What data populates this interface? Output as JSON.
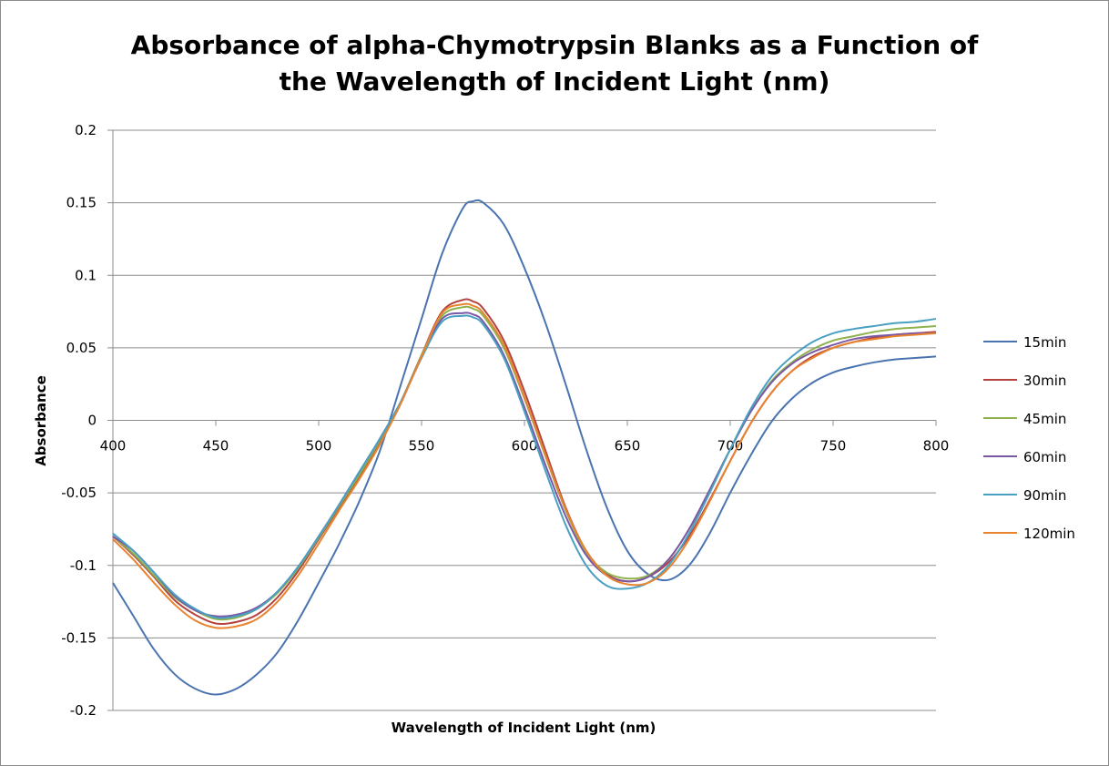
{
  "chart_data": {
    "type": "line",
    "title": "Absorbance of alpha-Chymotrypsin Blanks as a Function of\nthe Wavelength of Incident Light (nm)",
    "xlabel": "Wavelength of Incident Light (nm)",
    "ylabel": "Absorbance",
    "xlim": [
      400,
      800
    ],
    "ylim": [
      -0.2,
      0.2
    ],
    "x_ticks": [
      400,
      450,
      500,
      550,
      600,
      650,
      700,
      750,
      800
    ],
    "x_tick_labels": [
      "400",
      "450",
      "500",
      "550",
      "600",
      "650",
      "700",
      "750",
      "800"
    ],
    "y_ticks": [
      0.2,
      0.15,
      0.1,
      0.05,
      0,
      -0.05,
      -0.1,
      -0.15,
      -0.2
    ],
    "y_tick_labels": [
      "0.2",
      "0.15",
      "0.1",
      "0.05",
      "0",
      "-0.05",
      "-0.1",
      "-0.15",
      "-0.2"
    ],
    "grid": "horizontal",
    "legend_position": "right",
    "x": [
      400,
      410,
      420,
      430,
      440,
      450,
      460,
      470,
      480,
      490,
      500,
      510,
      520,
      530,
      540,
      550,
      560,
      570,
      575,
      580,
      590,
      600,
      610,
      620,
      630,
      640,
      650,
      660,
      670,
      680,
      690,
      700,
      710,
      720,
      730,
      740,
      750,
      760,
      770,
      780,
      790,
      800
    ],
    "series": [
      {
        "name": "15min",
        "color": "#4a74b0",
        "values": [
          -0.112,
          -0.135,
          -0.158,
          -0.175,
          -0.185,
          -0.189,
          -0.185,
          -0.175,
          -0.16,
          -0.138,
          -0.112,
          -0.085,
          -0.055,
          -0.02,
          0.025,
          0.07,
          0.115,
          0.146,
          0.151,
          0.15,
          0.135,
          0.105,
          0.068,
          0.025,
          -0.02,
          -0.06,
          -0.09,
          -0.106,
          -0.11,
          -0.1,
          -0.078,
          -0.05,
          -0.024,
          -0.001,
          0.015,
          0.026,
          0.033,
          0.037,
          0.04,
          0.042,
          0.043,
          0.044
        ]
      },
      {
        "name": "30min",
        "color": "#b3433f",
        "values": [
          -0.08,
          -0.093,
          -0.108,
          -0.124,
          -0.134,
          -0.14,
          -0.139,
          -0.134,
          -0.122,
          -0.104,
          -0.082,
          -0.06,
          -0.038,
          -0.015,
          0.012,
          0.045,
          0.075,
          0.083,
          0.082,
          0.077,
          0.055,
          0.02,
          -0.02,
          -0.06,
          -0.09,
          -0.106,
          -0.111,
          -0.108,
          -0.098,
          -0.08,
          -0.055,
          -0.028,
          -0.002,
          0.019,
          0.034,
          0.044,
          0.05,
          0.054,
          0.057,
          0.059,
          0.06,
          0.061
        ]
      },
      {
        "name": "45min",
        "color": "#8fb24e",
        "values": [
          -0.08,
          -0.092,
          -0.107,
          -0.122,
          -0.131,
          -0.137,
          -0.136,
          -0.13,
          -0.119,
          -0.102,
          -0.081,
          -0.059,
          -0.037,
          -0.013,
          0.013,
          0.045,
          0.072,
          0.078,
          0.077,
          0.072,
          0.05,
          0.015,
          -0.024,
          -0.062,
          -0.091,
          -0.105,
          -0.109,
          -0.107,
          -0.096,
          -0.075,
          -0.048,
          -0.02,
          0.006,
          0.027,
          0.04,
          0.049,
          0.055,
          0.058,
          0.061,
          0.063,
          0.064,
          0.065
        ]
      },
      {
        "name": "60min",
        "color": "#7a58a6",
        "values": [
          -0.08,
          -0.09,
          -0.105,
          -0.121,
          -0.131,
          -0.135,
          -0.134,
          -0.129,
          -0.118,
          -0.101,
          -0.08,
          -0.058,
          -0.035,
          -0.012,
          0.013,
          0.044,
          0.07,
          0.074,
          0.073,
          0.068,
          0.045,
          0.009,
          -0.03,
          -0.066,
          -0.093,
          -0.107,
          -0.111,
          -0.108,
          -0.096,
          -0.075,
          -0.048,
          -0.02,
          0.006,
          0.026,
          0.039,
          0.047,
          0.052,
          0.056,
          0.058,
          0.059,
          0.06,
          0.06
        ]
      },
      {
        "name": "90min",
        "color": "#4aa0c2",
        "values": [
          -0.078,
          -0.09,
          -0.105,
          -0.12,
          -0.13,
          -0.136,
          -0.135,
          -0.13,
          -0.118,
          -0.101,
          -0.08,
          -0.058,
          -0.035,
          -0.012,
          0.013,
          0.043,
          0.068,
          0.072,
          0.071,
          0.066,
          0.043,
          0.006,
          -0.034,
          -0.072,
          -0.1,
          -0.114,
          -0.116,
          -0.112,
          -0.1,
          -0.078,
          -0.05,
          -0.02,
          0.008,
          0.03,
          0.044,
          0.054,
          0.06,
          0.063,
          0.065,
          0.067,
          0.068,
          0.07
        ]
      },
      {
        "name": "120min",
        "color": "#e8832f",
        "values": [
          -0.082,
          -0.096,
          -0.112,
          -0.127,
          -0.138,
          -0.143,
          -0.142,
          -0.137,
          -0.125,
          -0.107,
          -0.085,
          -0.062,
          -0.04,
          -0.016,
          0.012,
          0.044,
          0.074,
          0.08,
          0.079,
          0.074,
          0.052,
          0.016,
          -0.023,
          -0.061,
          -0.09,
          -0.107,
          -0.113,
          -0.112,
          -0.102,
          -0.082,
          -0.056,
          -0.028,
          -0.002,
          0.019,
          0.034,
          0.043,
          0.05,
          0.054,
          0.056,
          0.058,
          0.059,
          0.06
        ]
      }
    ]
  }
}
